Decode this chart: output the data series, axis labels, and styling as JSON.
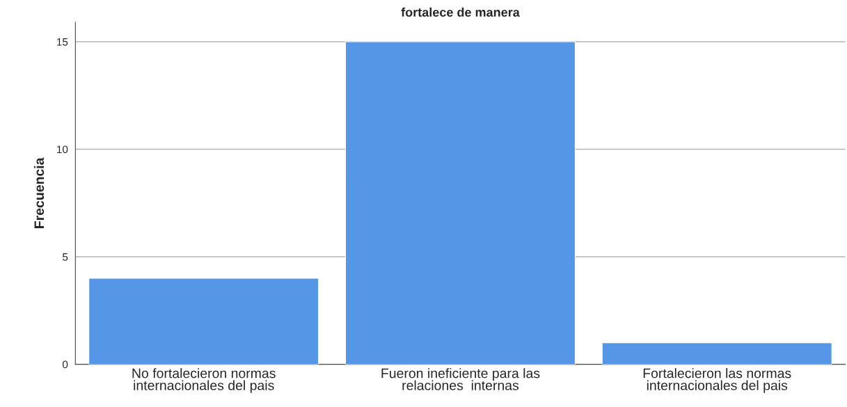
{
  "chart_data": {
    "type": "bar",
    "title": "fortalece de manera",
    "ylabel": "Frecuencia",
    "categories": [
      "No fortalecieron normas\ninternacionales del pais",
      "Fueron ineficiente para las\nrelaciones  internas",
      "Fortalecieron las normas\ninternacionales del pais"
    ],
    "values": [
      4,
      15,
      1
    ],
    "color": "#5596e6",
    "ylim": [
      0,
      15.9
    ],
    "yticks": [
      0,
      5,
      10,
      15
    ],
    "grid": "y"
  }
}
